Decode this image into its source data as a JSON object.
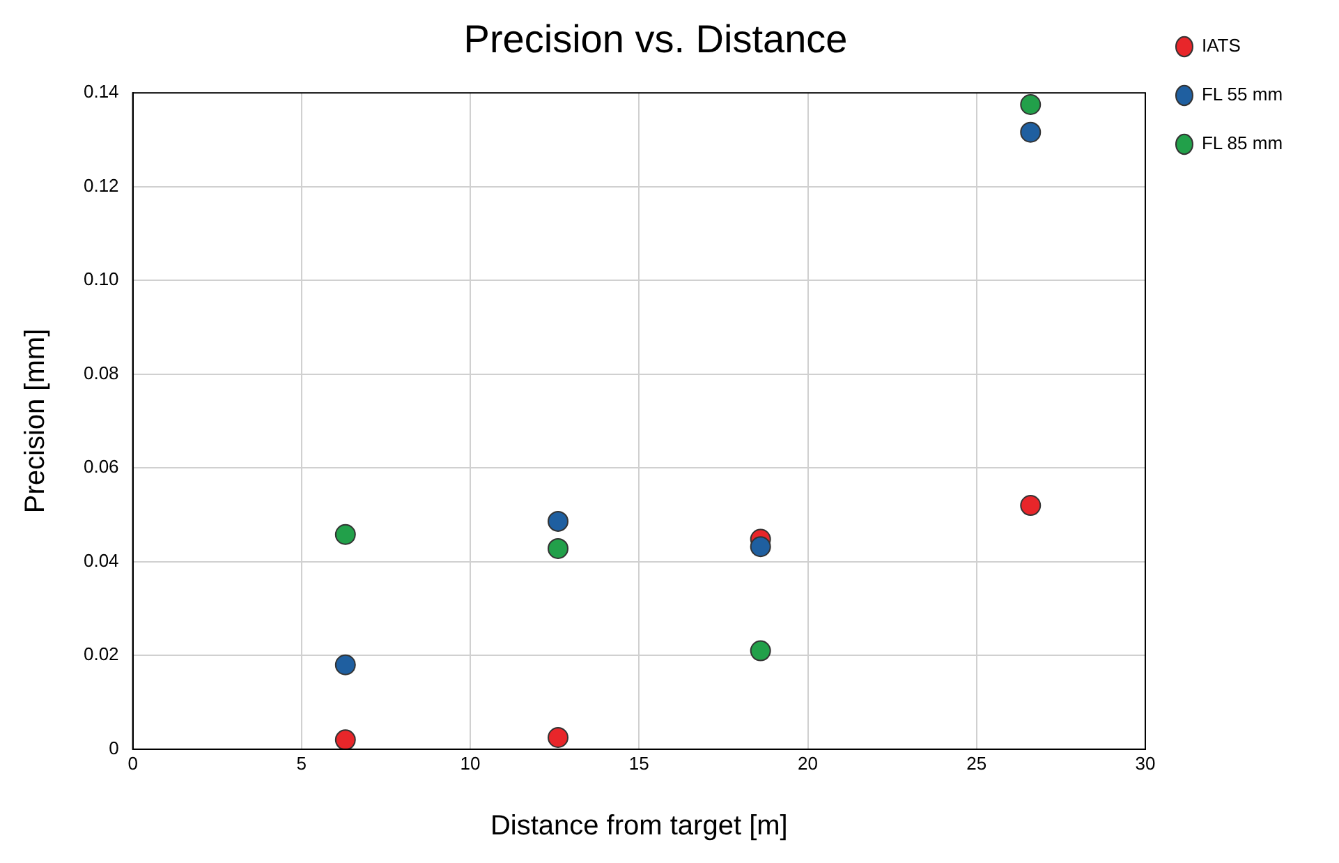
{
  "chart_data": {
    "type": "scatter",
    "title": "Precision vs. Distance",
    "xlabel": "Distance from target [m]",
    "ylabel": "Precision [mm]",
    "series": [
      {
        "name": "IATS",
        "color": "#e8262a",
        "x": [
          6.3,
          12.6,
          18.6,
          26.6
        ],
        "values": [
          0.002,
          0.0025,
          0.0448,
          0.052
        ]
      },
      {
        "name": "FL 55 mm",
        "color": "#1f5fa0",
        "x": [
          6.3,
          12.6,
          18.6,
          26.6
        ],
        "values": [
          0.018,
          0.0486,
          0.0432,
          0.1316
        ]
      },
      {
        "name": "FL 85 mm",
        "color": "#22a04a",
        "x": [
          6.3,
          12.6,
          18.6,
          26.6
        ],
        "values": [
          0.0458,
          0.0428,
          0.021,
          0.1375
        ]
      }
    ],
    "xlim": [
      0,
      30
    ],
    "xticks": [
      0,
      5,
      10,
      15,
      20,
      25,
      30
    ],
    "ylim": [
      0,
      0.14
    ],
    "yticks": [
      {
        "value": 0,
        "label": "0"
      },
      {
        "value": 0.02,
        "label": "0.02"
      },
      {
        "value": 0.04,
        "label": "0.04"
      },
      {
        "value": 0.06,
        "label": "0.06"
      },
      {
        "value": 0.08,
        "label": "0.08"
      },
      {
        "value": 0.1,
        "label": "0.10"
      },
      {
        "value": 0.12,
        "label": "0.12"
      },
      {
        "value": 0.14,
        "label": "0.14"
      }
    ],
    "grid": true,
    "legend": "top right",
    "marker": "circle"
  }
}
